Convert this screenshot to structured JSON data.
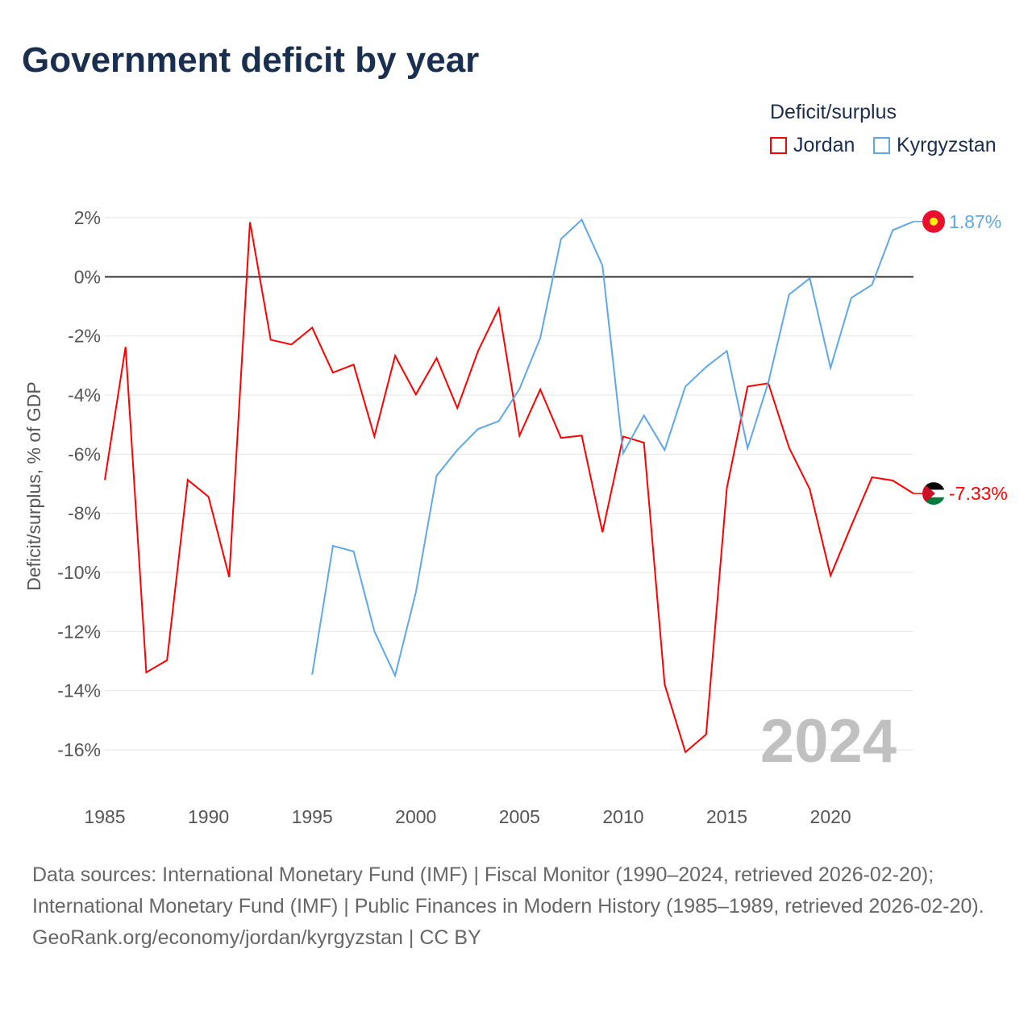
{
  "title": "Government deficit by year",
  "legend": {
    "title": "Deficit/surplus",
    "items": [
      {
        "name": "Jordan",
        "color": "#ff0000"
      },
      {
        "name": "Kyrgyzstan",
        "color": "#5fa8e8"
      }
    ]
  },
  "footer": {
    "sources": "Data sources: International Monetary Fund (IMF) | Fiscal Monitor (1990–2024, retrieved 2026-02-20); International Monetary Fund (IMF) | Public Finances in Modern History (1985–1989, retrieved 2026-02-20).",
    "credit": "GeoRank.org/economy/jordan/kyrgyzstan | CC BY"
  },
  "chart_data": {
    "type": "line",
    "title": "Government deficit by year",
    "ylabel": "Deficit/surplus, % of GDP",
    "xlabel": "",
    "ylim": [
      -16,
      2
    ],
    "xlim": [
      1985,
      2024
    ],
    "yticks": [
      "2%",
      "0%",
      "-2%",
      "-4%",
      "-6%",
      "-8%",
      "-10%",
      "-12%",
      "-14%",
      "-16%"
    ],
    "ytick_values": [
      2,
      0,
      -2,
      -4,
      -6,
      -8,
      -10,
      -12,
      -14,
      -16
    ],
    "xticks": [
      1985,
      1990,
      1995,
      2000,
      2005,
      2010,
      2015,
      2020
    ],
    "year_watermark": "2024",
    "legend_position": "top-right",
    "series": [
      {
        "name": "Jordan",
        "color": "#ff0000",
        "end_label": "-7.33%",
        "x_start": 1985,
        "values": [
          -6.87,
          -2.37,
          -13.38,
          -12.97,
          -6.87,
          -7.44,
          -10.16,
          1.85,
          -2.13,
          -2.29,
          -1.72,
          -3.24,
          -2.97,
          -5.4,
          -2.67,
          -3.98,
          -2.75,
          -4.44,
          -2.51,
          -1.06,
          -5.37,
          -3.81,
          -5.45,
          -5.37,
          -8.64,
          -5.4,
          -5.61,
          -13.79,
          -16.08,
          -15.48,
          -7.14,
          -3.71,
          -3.6,
          -5.78,
          -7.19,
          -10.11,
          -8.42,
          -6.78,
          -6.89,
          -7.33
        ]
      },
      {
        "name": "Kyrgyzstan",
        "color": "#5fa8e8",
        "end_label": "1.87%",
        "x_start": 1995,
        "values": [
          -13.46,
          -9.1,
          -9.29,
          -11.99,
          -13.49,
          -10.68,
          -6.73,
          -5.86,
          -5.15,
          -4.88,
          -3.79,
          -2.07,
          1.28,
          1.93,
          0.38,
          -5.97,
          -4.69,
          -5.86,
          -3.71,
          -3.05,
          -2.51,
          -5.8,
          -3.57,
          -0.6,
          -0.05,
          -3.08,
          -0.71,
          -0.27,
          1.58,
          1.87
        ]
      }
    ]
  }
}
